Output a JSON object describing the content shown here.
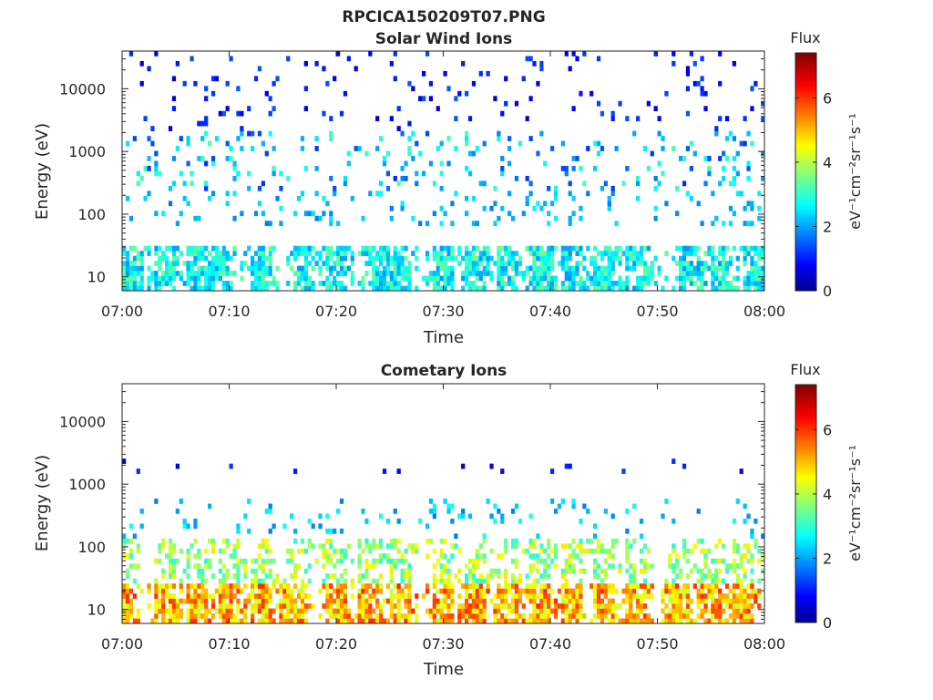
{
  "figure": {
    "file_title": "RPCICA150209T07.PNG"
  },
  "chart_data": [
    {
      "type": "heatmap",
      "title": "Solar Wind Ions",
      "xlabel": "Time",
      "ylabel": "Energy (eV)",
      "y_scale": "log",
      "x_ticks": [
        "07:00",
        "07:10",
        "07:20",
        "07:30",
        "07:40",
        "07:50",
        "08:00"
      ],
      "x_range": [
        "07:00",
        "08:00"
      ],
      "y_ticks": [
        10,
        100,
        1000,
        10000
      ],
      "y_range": [
        6,
        40000
      ],
      "colorbar": {
        "label": "Flux",
        "units": "eV⁻¹cm⁻²sr⁻¹s⁻¹",
        "ticks": [
          0,
          2,
          4,
          6
        ],
        "range": [
          0,
          7.4
        ],
        "colormap": "jet"
      },
      "bands": [
        {
          "emin": 6,
          "emax": 30,
          "fmin": 2.0,
          "fmax": 3.6,
          "density": 0.78
        },
        {
          "emin": 60,
          "emax": 250,
          "fmin": 1.8,
          "fmax": 2.8,
          "density": 0.1
        },
        {
          "emin": 250,
          "emax": 2000,
          "fmin": 1.2,
          "fmax": 3.4,
          "density": 0.09
        },
        {
          "emin": 2000,
          "emax": 40000,
          "fmin": 0.6,
          "fmax": 1.6,
          "density": 0.05
        }
      ],
      "pulse_times": [
        "07:01",
        "07:04",
        "07:07",
        "07:09",
        "07:13",
        "07:17",
        "07:20",
        "07:24",
        "07:26",
        "07:30",
        "07:33",
        "07:36",
        "07:39",
        "07:42",
        "07:45",
        "07:48",
        "07:53",
        "07:56",
        "07:59"
      ]
    },
    {
      "type": "heatmap",
      "title": "Cometary Ions",
      "xlabel": "Time",
      "ylabel": "Energy (eV)",
      "y_scale": "log",
      "x_ticks": [
        "07:00",
        "07:10",
        "07:20",
        "07:30",
        "07:40",
        "07:50",
        "08:00"
      ],
      "x_range": [
        "07:00",
        "08:00"
      ],
      "y_ticks": [
        10,
        100,
        1000,
        10000
      ],
      "y_range": [
        6,
        40000
      ],
      "colorbar": {
        "label": "Flux",
        "units": "eV⁻¹cm⁻²sr⁻¹s⁻¹",
        "ticks": [
          0,
          2,
          4,
          6
        ],
        "range": [
          0,
          7.4
        ],
        "colormap": "jet"
      },
      "bands": [
        {
          "emin": 6,
          "emax": 25,
          "fmin": 4.2,
          "fmax": 6.2,
          "density": 0.85
        },
        {
          "emin": 25,
          "emax": 130,
          "fmin": 3.0,
          "fmax": 4.8,
          "density": 0.45
        },
        {
          "emin": 130,
          "emax": 600,
          "fmin": 1.8,
          "fmax": 3.0,
          "density": 0.06
        },
        {
          "emin": 1500,
          "emax": 2500,
          "fmin": 0.6,
          "fmax": 1.4,
          "density": 0.03
        }
      ],
      "pulse_times": [
        "07:00",
        "07:04",
        "07:07",
        "07:10",
        "07:13",
        "07:16",
        "07:20",
        "07:23",
        "07:26",
        "07:30",
        "07:33",
        "07:36",
        "07:39",
        "07:42",
        "07:45",
        "07:48",
        "07:52",
        "07:55",
        "07:58"
      ]
    }
  ]
}
